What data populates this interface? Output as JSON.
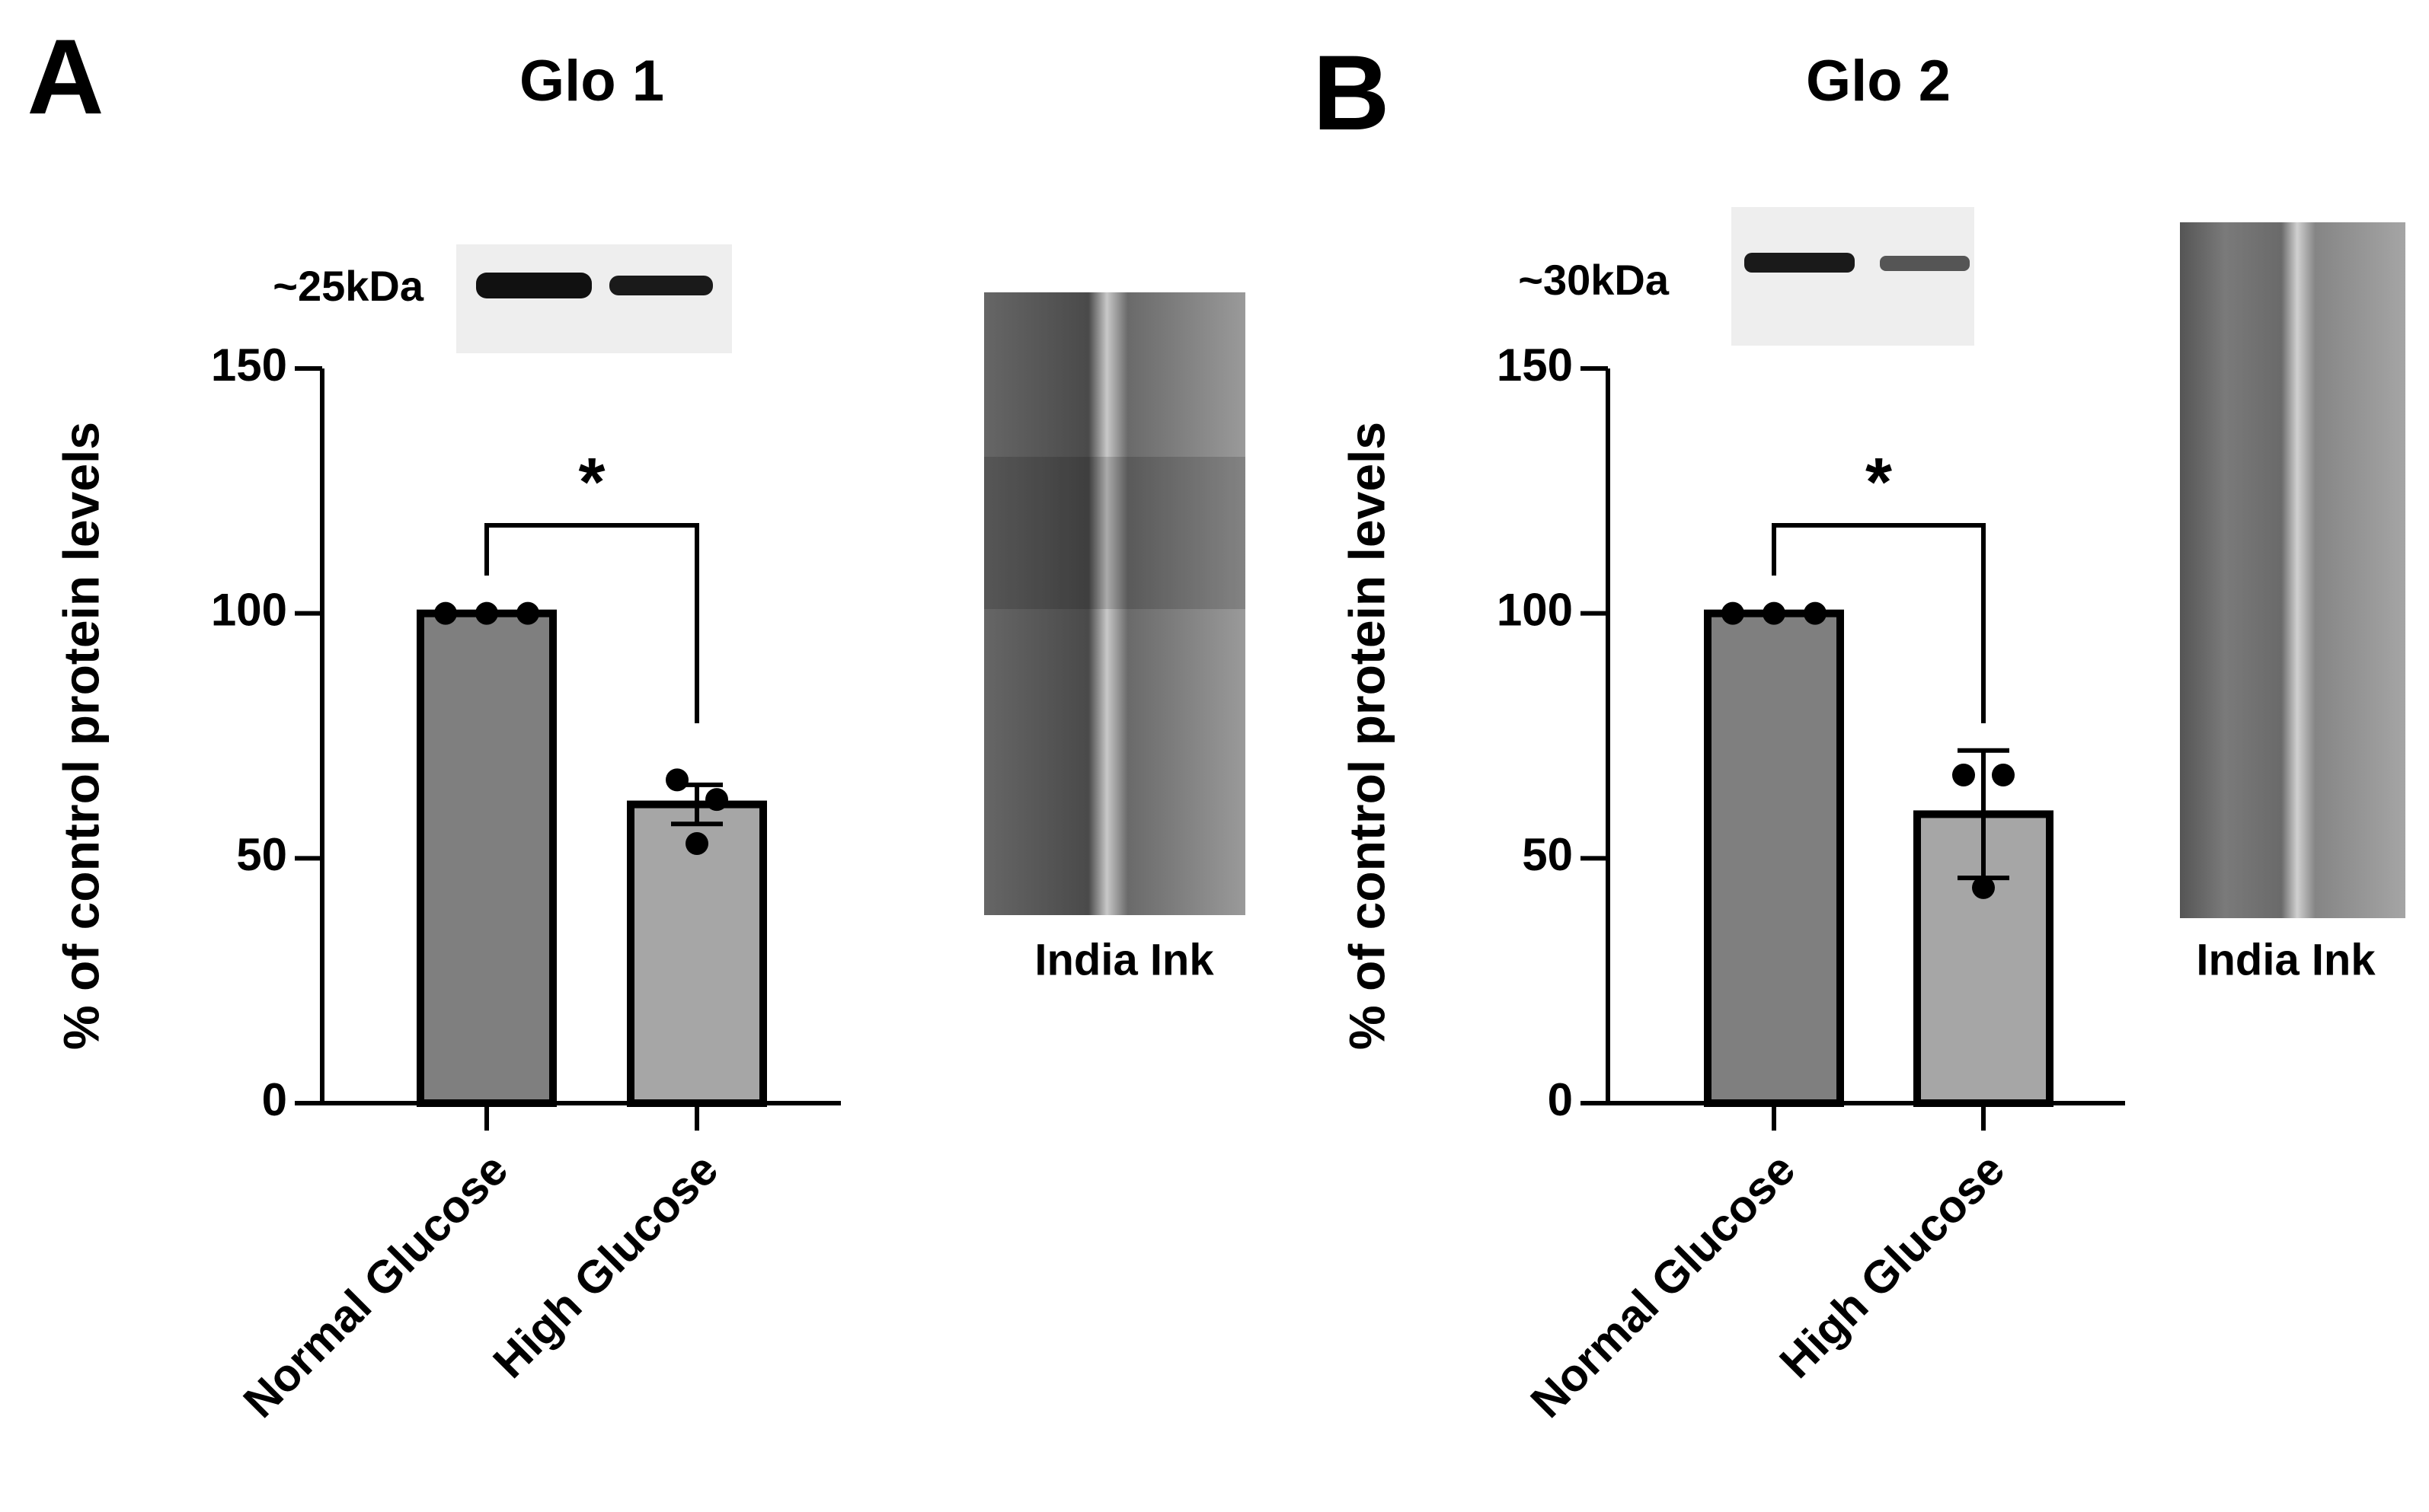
{
  "chart_data": [
    {
      "type": "bar",
      "panel": "A",
      "title": "Glo 1",
      "y_label": "% of  control protein levels",
      "band_label": "~25kDa",
      "stain_label": "India Ink",
      "annotation": "*",
      "categories": [
        "Normal Glucose",
        "High Glucose"
      ],
      "values": [
        100,
        61
      ],
      "errors": [
        0,
        4
      ],
      "points": [
        [
          100,
          100,
          100
        ],
        [
          66,
          62,
          53
        ]
      ],
      "colors": [
        "#7f7f7f",
        "#a6a6a6"
      ],
      "ylim": [
        0,
        150
      ],
      "yticks": [
        0,
        50,
        100,
        150
      ]
    },
    {
      "type": "bar",
      "panel": "B",
      "title": "Glo 2",
      "y_label": "% of  control protein levels",
      "band_label": "~30kDa",
      "stain_label": "India Ink",
      "annotation": "*",
      "categories": [
        "Normal Glucose",
        "High Glucose"
      ],
      "values": [
        100,
        59
      ],
      "errors": [
        0,
        13
      ],
      "points": [
        [
          100,
          100,
          100
        ],
        [
          67,
          67,
          44
        ]
      ],
      "colors": [
        "#7f7f7f",
        "#a6a6a6"
      ],
      "ylim": [
        0,
        150
      ],
      "yticks": [
        0,
        50,
        100,
        150
      ]
    }
  ]
}
